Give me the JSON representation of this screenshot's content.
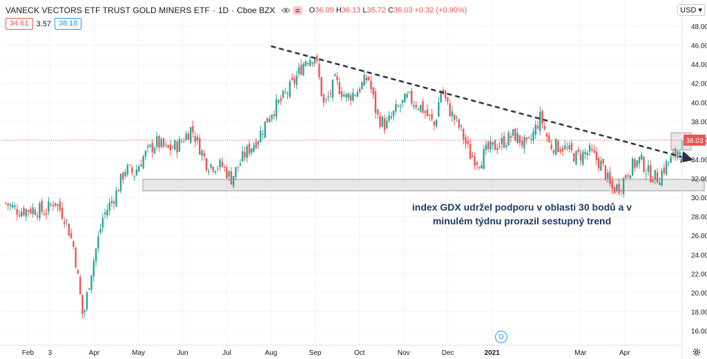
{
  "header": {
    "title": "VANECK VECTORS ETF TRUST GOLD MINERS ETF",
    "interval": "1D",
    "exchange": "Cboe BZX",
    "open_label": "O",
    "open": "36.09",
    "high_label": "H",
    "high": "36.13",
    "low_label": "L",
    "low": "35.72",
    "close_label": "C",
    "close": "36.03",
    "change": "+0.32 (+0.90%)"
  },
  "quote": {
    "bid": "34.61",
    "spread": "3.57",
    "ask": "38.18"
  },
  "currency": "USD",
  "price_label": "36.03",
  "event_marker": "D",
  "annotation": {
    "line1": "index GDX udržel podporu v oblasti 30 bodů a v",
    "line2": "minulém týdnu prorazil sestupný trend"
  },
  "colors": {
    "up": "#26a69a",
    "down": "#ef5350",
    "trend": "#2a2f45",
    "zone": "#c8c8c8",
    "annotation": "#1f3864"
  },
  "chart_data": {
    "type": "candlestick",
    "y_ticks": [
      "16.00",
      "18.00",
      "20.00",
      "22.00",
      "24.00",
      "26.00",
      "28.00",
      "30.00",
      "32.00",
      "34.00",
      "36.00",
      "38.00",
      "40.00",
      "42.00",
      "44.00",
      "46.00",
      "48.00"
    ],
    "ylim": [
      15,
      49
    ],
    "x_ticks": [
      "Feb",
      "3",
      "Apr",
      "May",
      "Jun",
      "Jul",
      "Aug",
      "Sep",
      "Oct",
      "Nov",
      "Dec",
      "2021",
      "Mar",
      "Apr"
    ],
    "x_tick_positions": [
      0.5,
      1,
      2,
      3,
      4,
      5,
      6,
      7,
      8,
      9,
      10,
      11,
      13,
      14
    ],
    "x_range": [
      -0.1,
      15.3
    ],
    "close_path": [
      [
        0,
        29.4
      ],
      [
        0.3,
        28.6
      ],
      [
        0.6,
        28.8
      ],
      [
        0.9,
        28.5
      ],
      [
        1.1,
        29.7
      ],
      [
        1.35,
        27.8
      ],
      [
        1.55,
        24.5
      ],
      [
        1.75,
        17.2
      ],
      [
        1.9,
        21.5
      ],
      [
        2.05,
        24.8
      ],
      [
        2.2,
        28.0
      ],
      [
        2.5,
        30.5
      ],
      [
        2.7,
        33.0
      ],
      [
        2.9,
        32.5
      ],
      [
        3.1,
        34.2
      ],
      [
        3.4,
        35.8
      ],
      [
        3.65,
        35.0
      ],
      [
        3.9,
        35.5
      ],
      [
        4.2,
        37.3
      ],
      [
        4.55,
        33.5
      ],
      [
        4.9,
        33.3
      ],
      [
        5.1,
        32.0
      ],
      [
        5.4,
        34.5
      ],
      [
        5.7,
        36.2
      ],
      [
        6.0,
        39.0
      ],
      [
        6.25,
        40.3
      ],
      [
        6.5,
        42.0
      ],
      [
        6.8,
        44.7
      ],
      [
        7.0,
        44.8
      ],
      [
        7.2,
        39.5
      ],
      [
        7.45,
        42.2
      ],
      [
        7.7,
        40.5
      ],
      [
        7.95,
        41.2
      ],
      [
        8.2,
        42.7
      ],
      [
        8.4,
        38.5
      ],
      [
        8.6,
        37.5
      ],
      [
        8.8,
        39.0
      ],
      [
        9.1,
        40.5
      ],
      [
        9.4,
        39.5
      ],
      [
        9.7,
        37.5
      ],
      [
        9.85,
        41.5
      ],
      [
        10.0,
        39.5
      ],
      [
        10.3,
        37.0
      ],
      [
        10.5,
        34.5
      ],
      [
        10.7,
        33.8
      ],
      [
        10.9,
        35.0
      ],
      [
        11.2,
        35.7
      ],
      [
        11.5,
        36.6
      ],
      [
        11.8,
        35.3
      ],
      [
        12.1,
        38.5
      ],
      [
        12.3,
        35.5
      ],
      [
        12.6,
        35.3
      ],
      [
        12.9,
        34.3
      ],
      [
        13.2,
        34.8
      ],
      [
        13.5,
        33.3
      ],
      [
        13.7,
        30.8
      ],
      [
        13.9,
        31.2
      ],
      [
        14.1,
        33.0
      ],
      [
        14.35,
        34.0
      ],
      [
        14.55,
        32.5
      ],
      [
        14.75,
        32.0
      ],
      [
        14.95,
        33.5
      ],
      [
        15.15,
        34.5
      ],
      [
        15.3,
        36.03
      ]
    ],
    "trendline": [
      [
        6.0,
        45.9
      ],
      [
        15.5,
        34.0
      ]
    ],
    "support_zone": {
      "x": [
        3.1,
        15.8
      ],
      "y": [
        30.7,
        31.9
      ]
    },
    "breakout_box": {
      "x": [
        15.05,
        15.5
      ],
      "y": [
        35.0,
        36.8
      ]
    },
    "last_price": 36.03
  }
}
